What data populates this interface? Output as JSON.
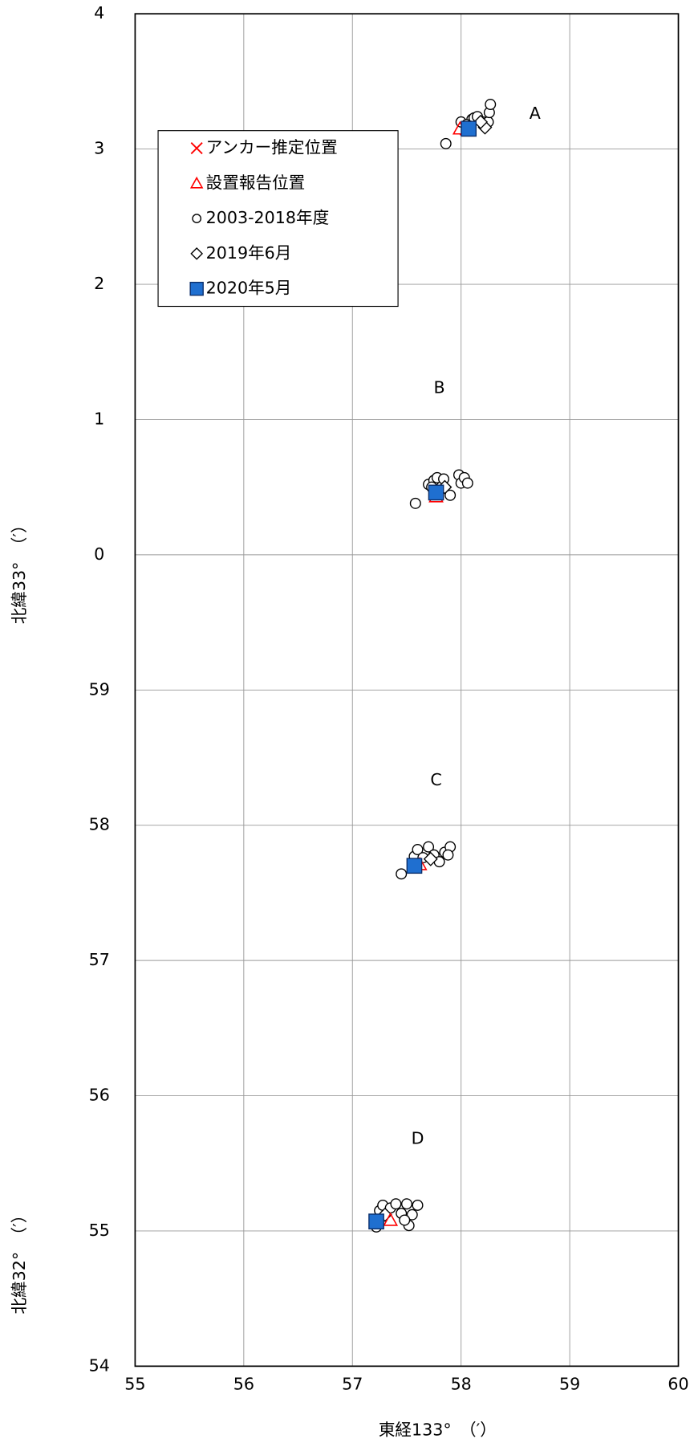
{
  "chart_data": {
    "type": "scatter",
    "xlabel": "東経133°　（′）",
    "ylabels": [
      "北緯33°　（′）",
      "北緯32°　（′）"
    ],
    "xlim": [
      55,
      60
    ],
    "xticks": [
      55,
      56,
      57,
      58,
      59,
      60
    ],
    "ylim": [
      54,
      64
    ],
    "yticks": [
      54,
      55,
      56,
      57,
      58,
      59,
      {
        "value": 60,
        "label": "0"
      },
      {
        "value": 61,
        "label": "1"
      },
      {
        "value": 62,
        "label": "2"
      },
      {
        "value": 63,
        "label": "3"
      },
      {
        "value": 64,
        "label": "4"
      }
    ],
    "grid": true,
    "legend": "upper left",
    "annotations": [
      {
        "text": "A",
        "x": 58.68,
        "y": 63.26
      },
      {
        "text": "B",
        "x": 57.8,
        "y": 61.23
      },
      {
        "text": "C",
        "x": 57.77,
        "y": 58.33
      },
      {
        "text": "D",
        "x": 57.6,
        "y": 55.68
      }
    ],
    "series": [
      {
        "name": "アンカー推定位置",
        "color": "#ff0000",
        "marker": "x",
        "x": [
          58.05,
          57.77,
          57.58,
          57.22
        ],
        "y": [
          63.15,
          60.45,
          57.7,
          55.07
        ]
      },
      {
        "name": "設置報告位置",
        "color": "#ff0000",
        "marker": "triangle",
        "x": [
          57.99,
          57.77,
          57.62,
          57.35
        ],
        "y": [
          63.15,
          60.43,
          57.71,
          55.08
        ]
      },
      {
        "name": "2003-2018年度",
        "color": "#000000",
        "marker": "circle",
        "x": [
          57.86,
          58.0,
          58.1,
          58.12,
          58.15,
          58.2,
          58.25,
          58.26,
          58.27,
          58.05,
          58.08,
          57.58,
          57.7,
          57.75,
          57.78,
          57.84,
          57.9,
          57.98,
          58.0,
          58.03,
          58.06,
          57.73,
          57.45,
          57.57,
          57.6,
          57.7,
          57.75,
          57.8,
          57.85,
          57.9,
          57.88,
          57.65,
          57.22,
          57.25,
          57.28,
          57.35,
          57.4,
          57.45,
          57.5,
          57.52,
          57.55,
          57.6,
          57.48
        ],
        "y": [
          63.04,
          63.2,
          63.22,
          63.23,
          63.24,
          63.2,
          63.2,
          63.27,
          63.33,
          63.18,
          63.17,
          60.38,
          60.52,
          60.55,
          60.57,
          60.56,
          60.44,
          60.59,
          60.53,
          60.57,
          60.53,
          60.5,
          57.64,
          57.77,
          57.82,
          57.84,
          57.78,
          57.73,
          57.8,
          57.84,
          57.78,
          57.76,
          55.03,
          55.15,
          55.19,
          55.17,
          55.2,
          55.13,
          55.2,
          55.04,
          55.12,
          55.19,
          55.08
        ]
      },
      {
        "name": "2019年6月",
        "color": "#000000",
        "marker": "diamond",
        "x": [
          58.22,
          58.18,
          57.85,
          57.72,
          57.3
        ],
        "y": [
          63.16,
          63.2,
          60.5,
          57.75,
          55.12
        ]
      },
      {
        "name": "2020年5月",
        "color": "#1f6fd0",
        "marker": "square",
        "x": [
          58.07,
          57.77,
          57.57,
          57.22
        ],
        "y": [
          63.15,
          60.46,
          57.7,
          55.07
        ]
      }
    ]
  }
}
